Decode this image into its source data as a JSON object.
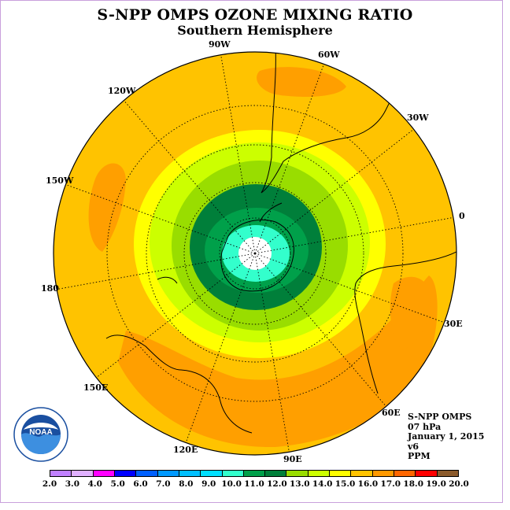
{
  "title": "S-NPP OMPS OZONE MIXING RATIO",
  "subtitle": "Southern Hemisphere",
  "map": {
    "projection": "polar-stereographic",
    "hemisphere": "south",
    "longitude_labels": [
      "90W",
      "60W",
      "30W",
      "0",
      "30E",
      "60E",
      "90E",
      "120E",
      "150E",
      "180",
      "150W",
      "120W"
    ],
    "contour_levels_ppm": [
      {
        "from": 15.0,
        "to": 16.0,
        "color": "#ffc300"
      },
      {
        "from": 14.0,
        "to": 15.0,
        "color": "#ffff00"
      },
      {
        "from": 13.0,
        "to": 14.0,
        "color": "#ccff00"
      },
      {
        "from": 12.0,
        "to": 13.0,
        "color": "#99dd00"
      },
      {
        "from": 11.0,
        "to": 12.0,
        "color": "#007f3a"
      },
      {
        "from": 10.0,
        "to": 11.0,
        "color": "#00a04a"
      },
      {
        "from": 9.0,
        "to": 10.0,
        "color": "#33ffcc"
      },
      {
        "from": 2.0,
        "to": 9.0,
        "color": "#ffffff"
      }
    ]
  },
  "info": {
    "instrument": "S-NPP OMPS",
    "pressure": "07 hPa",
    "date": "January 1, 2015",
    "version": "v6",
    "units": "PPM"
  },
  "logo": {
    "text": "NOAA"
  },
  "colorbar": {
    "ticks": [
      "2.0",
      "3.0",
      "4.0",
      "5.0",
      "6.0",
      "7.0",
      "8.0",
      "9.0",
      "10.0",
      "11.0",
      "12.0",
      "13.0",
      "14.0",
      "15.0",
      "16.0",
      "17.0",
      "18.0",
      "19.0",
      "20.0"
    ],
    "colors": [
      "#c080ff",
      "#e0b0ff",
      "#ff00ff",
      "#0000ff",
      "#0060ff",
      "#0099ff",
      "#00bfff",
      "#00dfff",
      "#33ffcc",
      "#00a04a",
      "#007f3a",
      "#99dd00",
      "#ccff00",
      "#ffff00",
      "#ffc300",
      "#ff9900",
      "#ff6600",
      "#ff0000",
      "#8b5a2b"
    ]
  }
}
